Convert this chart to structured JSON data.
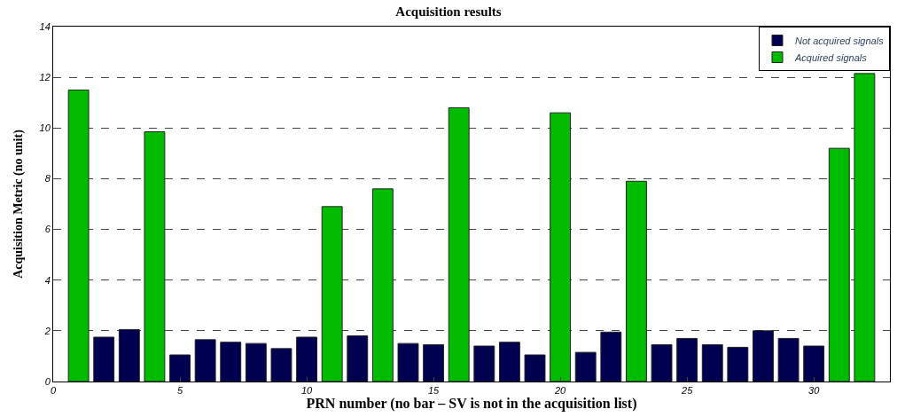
{
  "chart_data": {
    "type": "bar",
    "title": "Acquisition results",
    "xlabel": "PRN number (no bar – SV is not in the acquisition list)",
    "ylabel": "Acquisition Metric (no unit)",
    "series": [
      {
        "name": "Not acquired signals",
        "color": "#000050",
        "x": [
          2,
          3,
          5,
          6,
          7,
          8,
          9,
          10,
          12,
          14,
          15,
          17,
          18,
          19,
          21,
          22,
          24,
          25,
          26,
          27,
          28,
          29,
          30
        ],
        "values": [
          1.75,
          2.05,
          1.05,
          1.65,
          1.55,
          1.5,
          1.3,
          1.75,
          1.8,
          1.5,
          1.45,
          1.4,
          1.55,
          1.05,
          1.15,
          1.95,
          1.45,
          1.7,
          1.45,
          1.35,
          2.0,
          1.7,
          1.4
        ]
      },
      {
        "name": "Acquired signals",
        "color": "#00bb00",
        "x": [
          1,
          4,
          11,
          13,
          16,
          20,
          23,
          31,
          32
        ],
        "values": [
          11.5,
          9.85,
          6.9,
          7.6,
          10.8,
          10.6,
          7.9,
          9.2,
          12.15
        ]
      }
    ],
    "xlim": [
      0,
      33
    ],
    "xticks": [
      0,
      5,
      10,
      15,
      20,
      25,
      30
    ],
    "ylim": [
      0,
      14
    ],
    "yticks": [
      0,
      2,
      4,
      6,
      8,
      10,
      12,
      14
    ],
    "grid": "y",
    "legend": "top right"
  }
}
